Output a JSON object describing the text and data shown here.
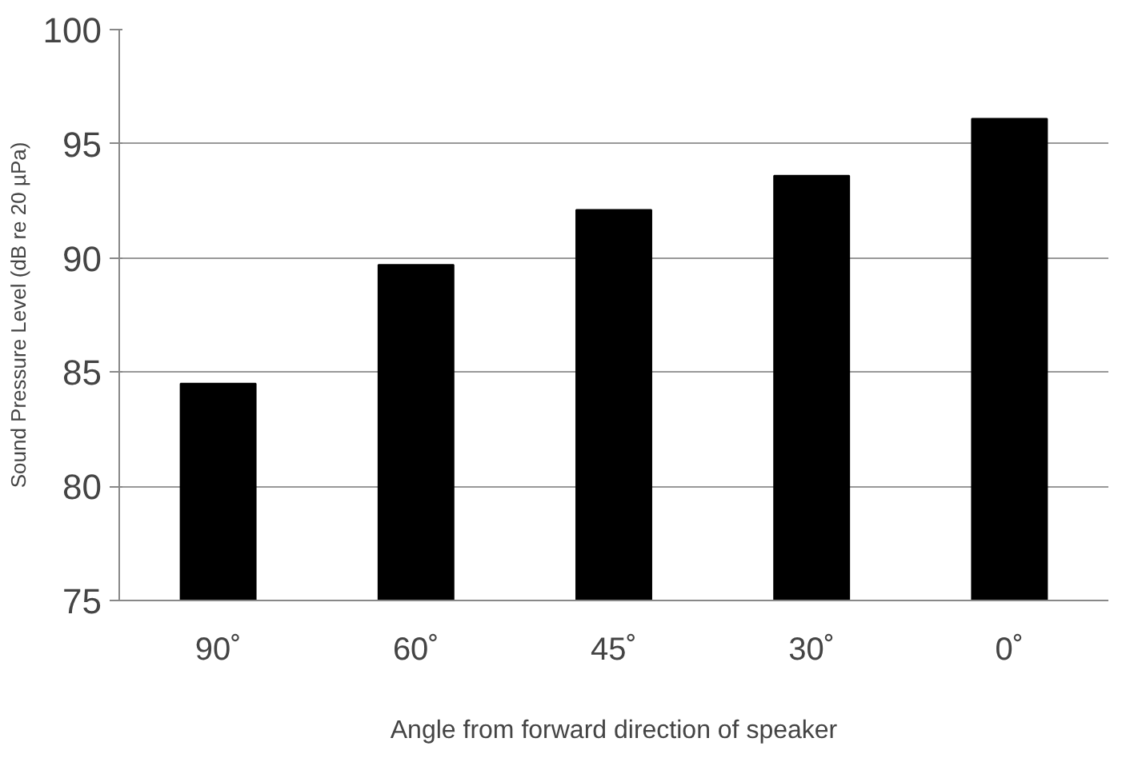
{
  "chart_data": {
    "type": "bar",
    "xlabel": "Angle from forward direction of speaker",
    "ylabel": "Sound Pressure Level (dB re 20 µPa)",
    "categories": [
      "90˚",
      "60˚",
      "45˚",
      "30˚",
      "0˚"
    ],
    "values": [
      84.5,
      89.7,
      92.1,
      93.6,
      96.1
    ],
    "color": "#000000",
    "ylim": [
      75,
      100
    ],
    "yticks": [
      75,
      80,
      85,
      90,
      95,
      100
    ],
    "grid": "y"
  }
}
